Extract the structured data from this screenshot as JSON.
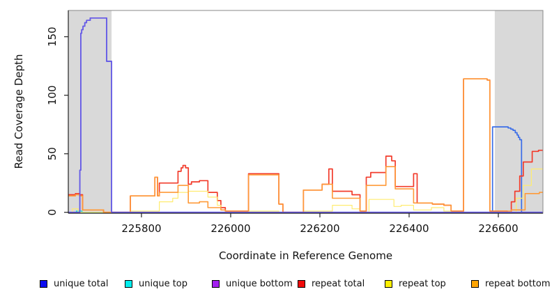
{
  "figure": {
    "background": "#ffffff"
  },
  "chart_data": {
    "type": "line",
    "title": "",
    "xlabel": "Coordinate in Reference Genome",
    "ylabel": "Read Coverage Depth",
    "xlim": [
      225636,
      226700
    ],
    "ylim": [
      0,
      173
    ],
    "xticks": [
      225800,
      226000,
      226200,
      226400,
      226600
    ],
    "yticks": [
      0,
      50,
      100,
      150
    ],
    "grid": false,
    "legend_position": "bottom",
    "shade_color": "#d9d9d9",
    "axis_color": "#222222",
    "frame_color": "#888888",
    "shaded_regions": [
      {
        "x0": 225636,
        "x1": 225733
      },
      {
        "x0": 226592,
        "x1": 226700
      }
    ],
    "draw_order": [
      "unique total",
      "unique top",
      "repeat total",
      "repeat top",
      "repeat bottom",
      "unique bottom"
    ],
    "series": [
      {
        "name": "unique total",
        "color": "#3a6de8",
        "legend_color": "#0b0bf0",
        "width": 1.7,
        "points": [
          [
            225636,
            0
          ],
          [
            225662,
            36
          ],
          [
            225664,
            153
          ],
          [
            225666,
            156
          ],
          [
            225669,
            159
          ],
          [
            225673,
            162
          ],
          [
            225677,
            164
          ],
          [
            225685,
            166
          ],
          [
            225722,
            129
          ],
          [
            225733,
            0
          ],
          [
            226587,
            73
          ],
          [
            226622,
            72
          ],
          [
            226628,
            71
          ],
          [
            226633,
            70
          ],
          [
            226638,
            68
          ],
          [
            226642,
            66
          ],
          [
            226645,
            64
          ],
          [
            226648,
            62
          ],
          [
            226652,
            0
          ]
        ]
      },
      {
        "name": "unique top",
        "color": "#00dcdc",
        "legend_color": "#00eeee",
        "width": 1.2,
        "points": [
          [
            225636,
            0
          ],
          [
            225654,
            1
          ],
          [
            225667,
            0
          ]
        ]
      },
      {
        "name": "unique bottom",
        "color": "#6a5ae6",
        "legend_color": "#a31ff0",
        "width": 1.7,
        "points": [
          [
            225636,
            0
          ],
          [
            225662,
            36
          ],
          [
            225664,
            153
          ],
          [
            225666,
            156
          ],
          [
            225669,
            159
          ],
          [
            225673,
            162
          ],
          [
            225677,
            164
          ],
          [
            225685,
            166
          ],
          [
            225722,
            129
          ],
          [
            225733,
            0
          ]
        ]
      },
      {
        "name": "repeat total",
        "color": "#f23b2b",
        "legend_color": "#f00a0a",
        "width": 1.7,
        "points": [
          [
            225636,
            15
          ],
          [
            225652,
            16
          ],
          [
            225661,
            15
          ],
          [
            225668,
            2
          ],
          [
            225715,
            0
          ],
          [
            225775,
            14
          ],
          [
            225830,
            30
          ],
          [
            225836,
            14
          ],
          [
            225840,
            25
          ],
          [
            225882,
            35
          ],
          [
            225889,
            38
          ],
          [
            225893,
            40
          ],
          [
            225899,
            38
          ],
          [
            225905,
            24
          ],
          [
            225912,
            26
          ],
          [
            225930,
            27
          ],
          [
            225949,
            17
          ],
          [
            225970,
            10
          ],
          [
            225978,
            4
          ],
          [
            225988,
            1
          ],
          [
            226040,
            33
          ],
          [
            226108,
            7
          ],
          [
            226117,
            0
          ],
          [
            226163,
            19
          ],
          [
            226205,
            24
          ],
          [
            226220,
            37
          ],
          [
            226228,
            18
          ],
          [
            226272,
            15
          ],
          [
            226290,
            1
          ],
          [
            226304,
            30
          ],
          [
            226314,
            34
          ],
          [
            226348,
            48
          ],
          [
            226361,
            44
          ],
          [
            226369,
            22
          ],
          [
            226410,
            33
          ],
          [
            226418,
            8
          ],
          [
            226452,
            7
          ],
          [
            226478,
            6
          ],
          [
            226494,
            1
          ],
          [
            226522,
            114
          ],
          [
            226575,
            113
          ],
          [
            226581,
            1
          ],
          [
            226620,
            0
          ],
          [
            226629,
            9
          ],
          [
            226637,
            18
          ],
          [
            226648,
            31
          ],
          [
            226656,
            43
          ],
          [
            226676,
            52
          ],
          [
            226690,
            53
          ]
        ]
      },
      {
        "name": "repeat top",
        "color": "#ffec70",
        "legend_color": "#fdf000",
        "width": 1.2,
        "points": [
          [
            225636,
            0
          ],
          [
            225645,
            3
          ],
          [
            225658,
            0
          ],
          [
            225775,
            1
          ],
          [
            225840,
            9
          ],
          [
            225870,
            12
          ],
          [
            225882,
            17
          ],
          [
            225905,
            18
          ],
          [
            225949,
            13
          ],
          [
            225970,
            6
          ],
          [
            225978,
            2
          ],
          [
            225988,
            0
          ],
          [
            226040,
            1
          ],
          [
            226108,
            0
          ],
          [
            226163,
            1
          ],
          [
            226228,
            6
          ],
          [
            226272,
            3
          ],
          [
            226290,
            0
          ],
          [
            226310,
            11
          ],
          [
            226366,
            5
          ],
          [
            226382,
            6
          ],
          [
            226410,
            2
          ],
          [
            226450,
            4
          ],
          [
            226478,
            1
          ],
          [
            226494,
            0
          ],
          [
            226640,
            12
          ],
          [
            226656,
            23
          ],
          [
            226674,
            37
          ]
        ]
      },
      {
        "name": "repeat bottom",
        "color": "#ff9a38",
        "legend_color": "#ffa500",
        "width": 1.6,
        "points": [
          [
            225636,
            14
          ],
          [
            225652,
            15
          ],
          [
            225661,
            14
          ],
          [
            225668,
            2
          ],
          [
            225715,
            0
          ],
          [
            225775,
            14
          ],
          [
            225830,
            30
          ],
          [
            225836,
            14
          ],
          [
            225840,
            17
          ],
          [
            225882,
            23
          ],
          [
            225905,
            8
          ],
          [
            225930,
            9
          ],
          [
            225949,
            4
          ],
          [
            225978,
            2
          ],
          [
            225988,
            1
          ],
          [
            226040,
            32
          ],
          [
            226108,
            7
          ],
          [
            226117,
            0
          ],
          [
            226163,
            19
          ],
          [
            226205,
            24
          ],
          [
            226228,
            12
          ],
          [
            226290,
            1
          ],
          [
            226304,
            23
          ],
          [
            226348,
            39
          ],
          [
            226369,
            20
          ],
          [
            226410,
            8
          ],
          [
            226452,
            7
          ],
          [
            226478,
            6
          ],
          [
            226494,
            1
          ],
          [
            226522,
            114
          ],
          [
            226575,
            113
          ],
          [
            226581,
            1
          ],
          [
            226629,
            2
          ],
          [
            226660,
            16
          ],
          [
            226692,
            17
          ]
        ]
      }
    ]
  },
  "legend": {
    "items_note": "six series, chips left-to-right"
  }
}
